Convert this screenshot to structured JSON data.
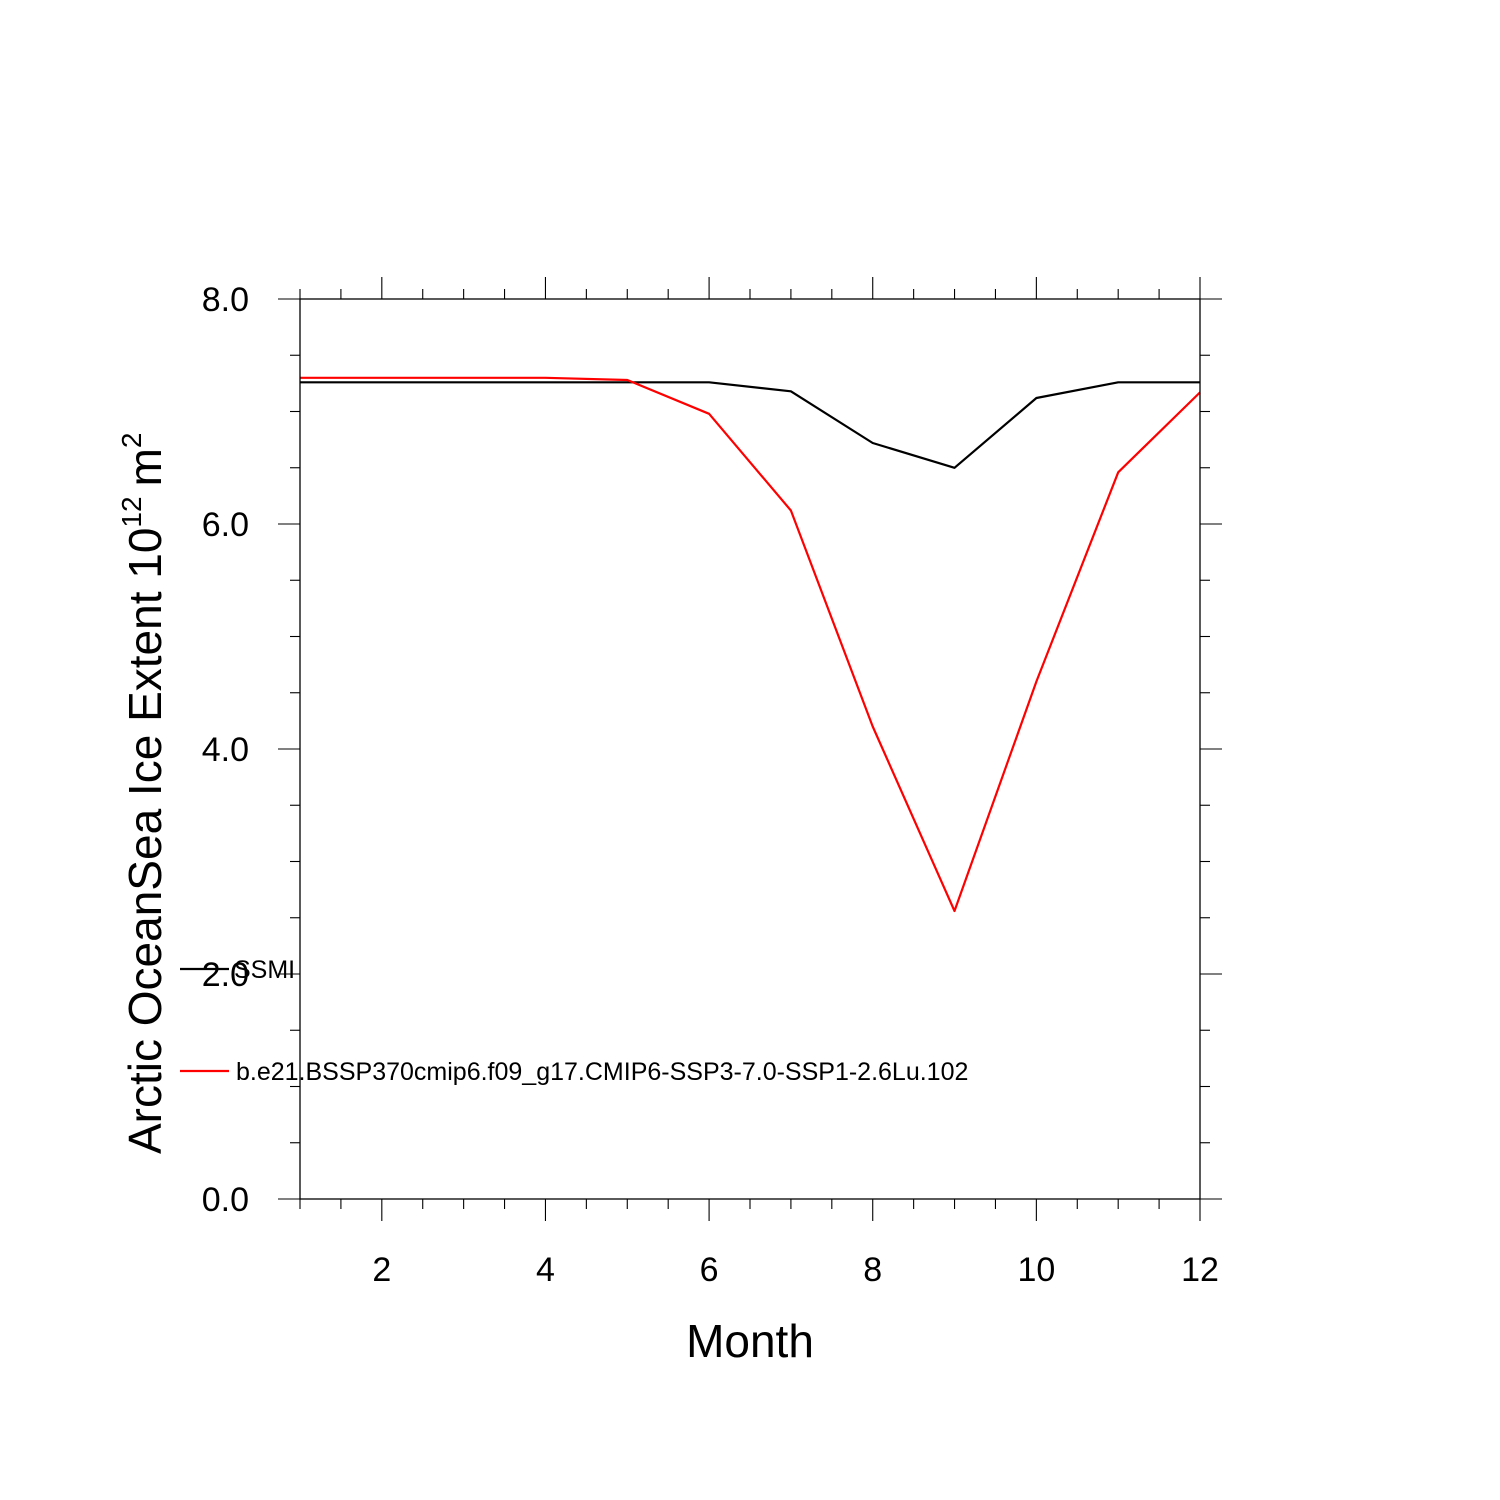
{
  "chart_data": {
    "type": "line",
    "xlabel": "Month",
    "ylabel": "Arctic OceanSea Ice Extent 10",
    "ylabel_superscript": "12",
    "ylabel_unit": "m",
    "ylabel_unit_superscript": "2",
    "xlim": [
      1,
      12
    ],
    "ylim": [
      0,
      8
    ],
    "x_ticks": [
      2,
      4,
      6,
      8,
      10,
      12
    ],
    "x_tick_labels": [
      "2",
      "4",
      "6",
      "8",
      "10",
      "12"
    ],
    "y_ticks": [
      0,
      2,
      4,
      6,
      8
    ],
    "y_tick_labels": [
      "0.0",
      "2.0",
      "4.0",
      "6.0",
      "8.0"
    ],
    "grid": false,
    "legend_position": "lower-left",
    "x": [
      1,
      2,
      3,
      4,
      5,
      6,
      7,
      8,
      9,
      10,
      11,
      12
    ],
    "series": [
      {
        "name": "SSMI",
        "color": "#000000",
        "values": [
          7.26,
          7.26,
          7.26,
          7.26,
          7.26,
          7.26,
          7.18,
          6.72,
          6.5,
          7.12,
          7.26,
          7.26
        ]
      },
      {
        "name": "b.e21.BSSP370cmip6.f09_g17.CMIP6-SSP3-7.0-SSP1-2.6Lu.102",
        "color": "#ff0000",
        "values": [
          7.3,
          7.3,
          7.3,
          7.3,
          7.28,
          6.98,
          6.12,
          4.2,
          2.56,
          4.6,
          6.46,
          7.17
        ]
      }
    ]
  }
}
